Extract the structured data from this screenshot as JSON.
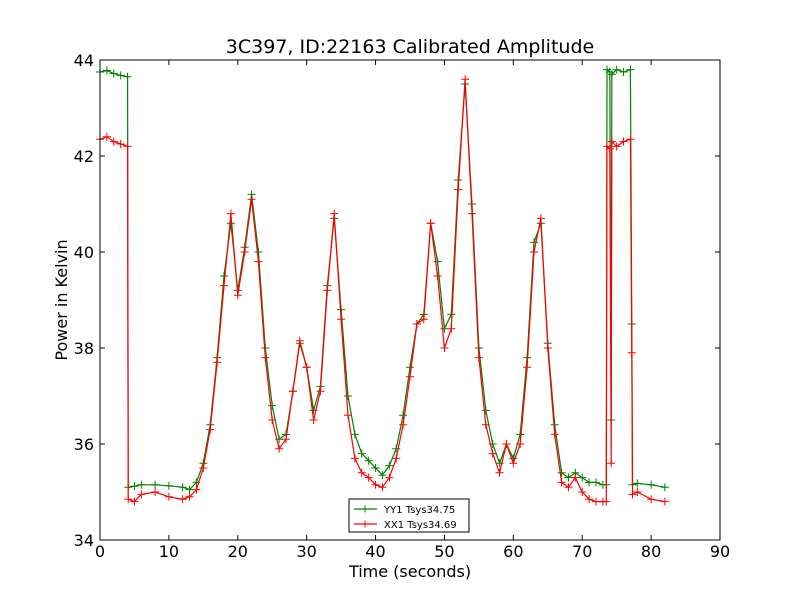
{
  "chart_data": {
    "type": "line",
    "title": "3C397, ID:22163 Calibrated Amplitude",
    "xlabel": "Time (seconds)",
    "ylabel": "Power in Kelvin",
    "xlim": [
      0,
      90
    ],
    "ylim": [
      34,
      44
    ],
    "x_ticks": [
      "0",
      "10",
      "20",
      "30",
      "40",
      "50",
      "60",
      "70",
      "80",
      "90"
    ],
    "y_ticks": [
      "34",
      "36",
      "38",
      "40",
      "42",
      "44"
    ],
    "grid": false,
    "legend_position": "bottom-center",
    "series": [
      {
        "name": "YY1 Tsys34.75",
        "color": "#008000",
        "marker": "plus",
        "x": [
          0,
          1,
          2,
          3,
          4,
          4.1,
          5,
          6,
          8,
          10,
          12,
          13,
          14,
          15,
          16,
          17,
          18,
          19,
          20,
          21,
          22,
          23,
          24,
          25,
          26,
          27,
          28,
          29,
          30,
          31,
          32,
          33,
          34,
          35,
          36,
          37,
          38,
          39,
          40,
          41,
          42,
          43,
          44,
          45,
          46,
          47,
          48,
          49,
          50,
          51,
          52,
          53,
          54,
          55,
          56,
          57,
          58,
          59,
          60,
          61,
          62,
          63,
          64,
          65,
          66,
          67,
          68,
          69,
          70,
          71,
          72,
          73,
          73.5,
          73.6,
          74,
          74.2,
          74.3,
          75,
          76,
          77,
          77.2,
          77.3,
          78,
          80,
          82
        ],
        "y": [
          43.75,
          43.78,
          43.72,
          43.68,
          43.65,
          35.1,
          35.12,
          35.15,
          35.15,
          35.13,
          35.1,
          35.05,
          35.2,
          35.6,
          36.4,
          37.8,
          39.5,
          40.6,
          39.2,
          40.1,
          41.2,
          40.0,
          38.0,
          36.8,
          36.1,
          36.2,
          37.1,
          38.1,
          37.6,
          36.7,
          37.2,
          39.3,
          40.7,
          38.8,
          37.0,
          36.2,
          35.8,
          35.65,
          35.5,
          35.35,
          35.55,
          35.9,
          36.6,
          37.6,
          38.5,
          38.7,
          40.6,
          39.8,
          38.4,
          38.7,
          41.5,
          43.5,
          41.0,
          38.0,
          36.7,
          36.0,
          35.6,
          36.0,
          35.7,
          36.2,
          37.8,
          40.2,
          40.6,
          38.1,
          36.4,
          35.4,
          35.3,
          35.4,
          35.3,
          35.2,
          35.2,
          35.15,
          35.15,
          43.8,
          43.75,
          36.5,
          43.7,
          43.8,
          43.75,
          43.8,
          38.5,
          35.15,
          35.18,
          35.15,
          35.1
        ]
      },
      {
        "name": "XX1 Tsys34.69",
        "color": "#ff0000",
        "marker": "plus",
        "x": [
          0,
          1,
          2,
          3,
          4,
          4.1,
          5,
          6,
          8,
          10,
          12,
          13,
          14,
          15,
          16,
          17,
          18,
          19,
          20,
          21,
          22,
          23,
          24,
          25,
          26,
          27,
          28,
          29,
          30,
          31,
          32,
          33,
          34,
          35,
          36,
          37,
          38,
          39,
          40,
          41,
          42,
          43,
          44,
          45,
          46,
          47,
          48,
          49,
          50,
          51,
          52,
          53,
          54,
          55,
          56,
          57,
          58,
          59,
          60,
          61,
          62,
          63,
          64,
          65,
          66,
          67,
          68,
          69,
          70,
          71,
          72,
          73,
          73.5,
          73.6,
          74,
          74.2,
          74.3,
          75,
          76,
          77,
          77.2,
          77.3,
          78,
          80,
          82
        ],
        "y": [
          42.35,
          42.4,
          42.3,
          42.25,
          42.2,
          34.85,
          34.8,
          34.95,
          35.0,
          34.9,
          34.85,
          34.9,
          35.05,
          35.5,
          36.3,
          37.7,
          39.3,
          40.8,
          39.1,
          40.0,
          41.1,
          39.8,
          37.8,
          36.5,
          35.9,
          36.1,
          37.1,
          38.15,
          37.6,
          36.5,
          37.1,
          39.2,
          40.8,
          38.6,
          36.6,
          35.7,
          35.4,
          35.3,
          35.15,
          35.1,
          35.3,
          35.7,
          36.4,
          37.4,
          38.5,
          38.6,
          40.6,
          39.5,
          38.0,
          38.4,
          41.3,
          43.6,
          40.8,
          37.8,
          36.4,
          35.8,
          35.4,
          36.0,
          35.6,
          36.0,
          37.6,
          40.0,
          40.7,
          38.0,
          36.2,
          35.2,
          35.1,
          35.3,
          35.0,
          34.85,
          34.8,
          34.8,
          34.8,
          42.2,
          42.15,
          35.6,
          42.3,
          42.2,
          42.3,
          42.35,
          37.9,
          34.95,
          35.0,
          34.85,
          34.8
        ]
      }
    ]
  }
}
